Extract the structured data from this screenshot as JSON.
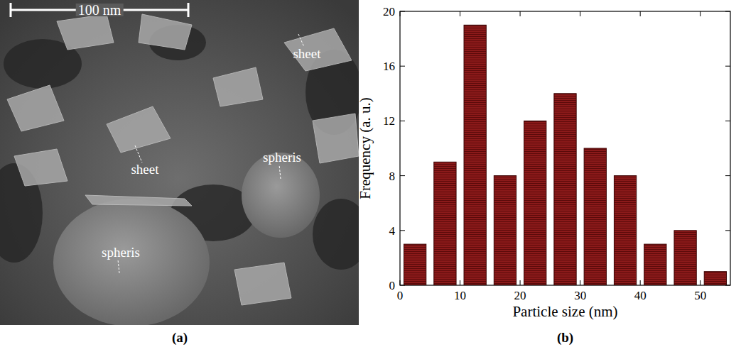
{
  "image_panel": {
    "label": "(a)",
    "scale_bar": "100 nm",
    "annotations": [
      "sheet",
      "sheet",
      "spheris",
      "spheris"
    ]
  },
  "chart_data": {
    "type": "histogram",
    "caption": "(b)",
    "x_label": "Particle size (nm)",
    "y_label": "Frequency (a. u.)",
    "bins": [
      0,
      5,
      10,
      15,
      20,
      25,
      30,
      35,
      40,
      45,
      50,
      55
    ],
    "values": [
      3,
      9,
      19,
      8,
      12,
      14,
      10,
      8,
      3,
      4,
      1
    ],
    "color": "#8b1a1a",
    "xlim": [
      0,
      55
    ],
    "xticks": [
      0,
      10,
      20,
      30,
      40,
      50
    ],
    "ylim": [
      0,
      20
    ],
    "yticks": [
      0,
      4,
      8,
      12,
      16,
      20
    ],
    "grid": false
  }
}
